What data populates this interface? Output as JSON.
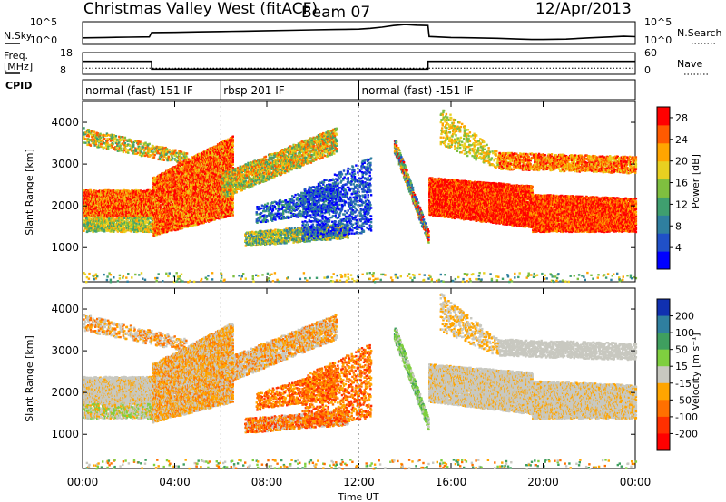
{
  "header": {
    "station": "Christmas Valley West (fitACF)",
    "beam": "Beam 07",
    "date": "12/Apr/2013"
  },
  "chart_data": [
    {
      "type": "line",
      "panel": "noise",
      "labels": {
        "left": "N.Sky",
        "right": "N.Search"
      },
      "yticks_left": [
        "10^5",
        "10^0"
      ],
      "yticks_right": [
        "10^5",
        "10^0"
      ],
      "series": [
        {
          "x": [
            0,
            1,
            2,
            2.9,
            3.0,
            4,
            5,
            6,
            7,
            8,
            9,
            10,
            11,
            12,
            12.5,
            13,
            13.5,
            14,
            14.5,
            15,
            15.05,
            16,
            17,
            18,
            19,
            19.5,
            20,
            21,
            22,
            23,
            23.5,
            24
          ],
          "y": [
            0.28,
            0.3,
            0.32,
            0.33,
            0.55,
            0.56,
            0.58,
            0.6,
            0.62,
            0.64,
            0.66,
            0.68,
            0.7,
            0.72,
            0.76,
            0.82,
            0.9,
            0.95,
            0.92,
            0.9,
            0.35,
            0.3,
            0.28,
            0.26,
            0.22,
            0.2,
            0.2,
            0.22,
            0.28,
            0.33,
            0.36,
            0.34
          ]
        }
      ]
    },
    {
      "type": "line",
      "panel": "frequency",
      "labels": {
        "left": "Freq. [MHz]",
        "right": "Nave"
      },
      "yticks_left": [
        "18",
        "8"
      ],
      "yticks_right": [
        "60",
        "0"
      ],
      "series": [
        {
          "x": [
            0,
            3.0,
            3.0,
            15.0,
            15.0,
            24
          ],
          "y": [
            15,
            15,
            10.5,
            10.5,
            15,
            15
          ]
        },
        {
          "x": [
            0,
            24
          ],
          "y": [
            11,
            11
          ]
        }
      ]
    },
    {
      "type": "table",
      "panel": "cpid",
      "label": "CPID",
      "segments": [
        {
          "start": 0,
          "end": 6,
          "name": "normal (fast) 151 IF"
        },
        {
          "start": 6,
          "end": 12,
          "name": "rbsp 201 IF"
        },
        {
          "start": 12,
          "end": 24,
          "name": "normal (fast) -151 IF"
        }
      ]
    },
    {
      "type": "heatmap",
      "panel": "power",
      "ylabel": "Slant Range [km]",
      "ylim": [
        180,
        4500
      ],
      "yticks": [
        1000,
        2000,
        3000,
        4000
      ],
      "colorbar": {
        "label": "Power [dB]",
        "ticks": [
          4,
          8,
          12,
          16,
          20,
          24,
          28
        ],
        "range": [
          0,
          30
        ],
        "colors": [
          "#0000ff",
          "#2050c8",
          "#2f7f9f",
          "#3f9f6f",
          "#7fbf3f",
          "#e8d020",
          "#ffa500",
          "#ff5a00",
          "#ff0000"
        ]
      }
    },
    {
      "type": "heatmap",
      "panel": "velocity",
      "ylabel": "Slant Range [km]",
      "xlabel": "Time UT",
      "ylim": [
        180,
        4500
      ],
      "yticks": [
        1000,
        2000,
        3000,
        4000
      ],
      "xticks": [
        "00:00",
        "04:00",
        "08:00",
        "12:00",
        "16:00",
        "20:00",
        "00:00"
      ],
      "colorbar": {
        "label": "Velocity [m s⁻¹]",
        "ticks": [
          "200",
          "100",
          "50",
          "15",
          "-15",
          "-50",
          "-100",
          "-200"
        ],
        "colors": [
          "#1030b0",
          "#2f7f9f",
          "#3f9f5f",
          "#7fcf3f",
          "#c8c8c0",
          "#ffa500",
          "#ff7000",
          "#ff3000",
          "#ff0000"
        ]
      }
    }
  ]
}
